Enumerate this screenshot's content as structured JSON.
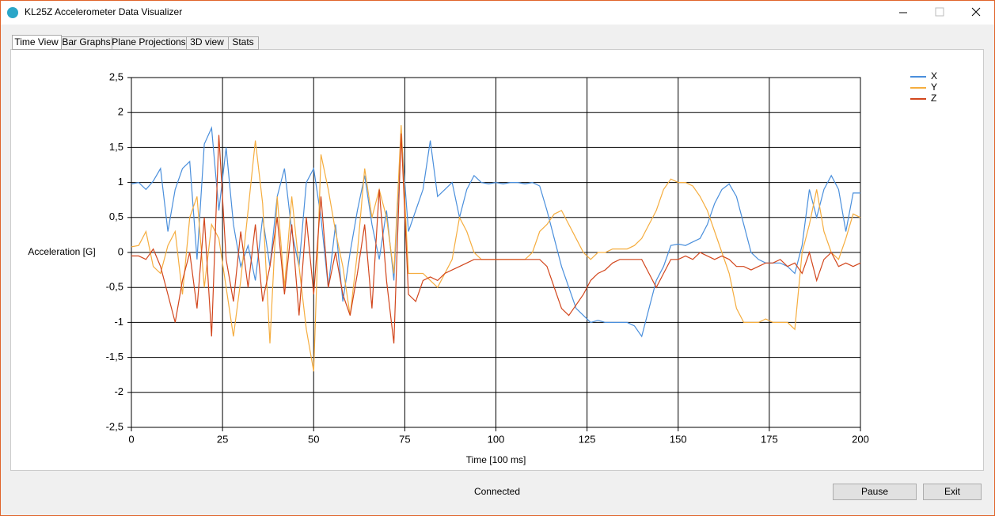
{
  "window": {
    "title": "KL25Z Accelerometer Data Visualizer",
    "tabs": [
      "Time View",
      "Bar Graphs",
      "Plane Projections",
      "3D view",
      "Stats"
    ],
    "status": "Connected",
    "buttons": [
      "Pause",
      "Exit"
    ]
  },
  "chart_data": {
    "type": "line",
    "ylabel": "Acceleration [G]",
    "xlabel": "Time [100 ms]",
    "xlim": [
      0,
      200
    ],
    "xticks": [
      0,
      25,
      50,
      75,
      100,
      125,
      150,
      175,
      200
    ],
    "ylim": [
      -2.5,
      2.5
    ],
    "yticks": [
      {
        "value": 2.5,
        "label": "2,5"
      },
      2,
      {
        "value": 1.5,
        "label": "1,5"
      },
      1,
      {
        "value": 0.5,
        "label": "0,5"
      },
      0,
      {
        "value": -0.5,
        "label": "-0,5"
      },
      -1,
      {
        "value": -1.5,
        "label": "-1,5"
      },
      -2,
      {
        "value": -2.5,
        "label": "-2,5"
      }
    ],
    "grid": true,
    "legend": "top-right",
    "x": [
      0,
      2,
      4,
      6,
      8,
      10,
      12,
      14,
      16,
      18,
      20,
      22,
      24,
      26,
      28,
      30,
      32,
      34,
      36,
      38,
      40,
      42,
      44,
      46,
      48,
      50,
      52,
      54,
      56,
      58,
      60,
      62,
      64,
      66,
      68,
      70,
      72,
      74,
      76,
      78,
      80,
      82,
      84,
      86,
      88,
      90,
      92,
      94,
      96,
      98,
      100,
      102,
      104,
      106,
      108,
      110,
      112,
      114,
      116,
      118,
      120,
      122,
      124,
      126,
      128,
      130,
      132,
      134,
      136,
      138,
      140,
      142,
      144,
      146,
      148,
      150,
      152,
      154,
      156,
      158,
      160,
      162,
      164,
      166,
      168,
      170,
      172,
      174,
      176,
      178,
      180,
      182,
      184,
      186,
      188,
      190,
      192,
      194,
      196,
      198,
      200
    ],
    "series": [
      {
        "name": "X",
        "color": "#4a8fdc",
        "values": [
          0.98,
          1.0,
          0.9,
          1.02,
          1.2,
          0.3,
          0.9,
          1.2,
          1.3,
          -0.1,
          1.55,
          1.78,
          0.6,
          1.5,
          0.4,
          -0.2,
          0.1,
          -0.4,
          0.5,
          -0.2,
          0.8,
          1.2,
          0.3,
          -0.2,
          1.0,
          1.2,
          0.5,
          -0.5,
          0.4,
          -0.7,
          0.0,
          0.6,
          1.1,
          0.4,
          -0.1,
          0.6,
          -0.4,
          1.7,
          0.3,
          0.6,
          0.9,
          1.6,
          0.8,
          0.9,
          1.0,
          0.5,
          0.9,
          1.1,
          1.0,
          0.98,
          1.0,
          0.98,
          1.0,
          1.0,
          0.98,
          1.0,
          0.95,
          0.6,
          0.2,
          -0.2,
          -0.5,
          -0.8,
          -0.9,
          -1.0,
          -0.97,
          -1.0,
          -1.0,
          -1.0,
          -1.0,
          -1.05,
          -1.2,
          -0.8,
          -0.4,
          -0.2,
          0.1,
          0.12,
          0.1,
          0.15,
          0.2,
          0.4,
          0.7,
          0.9,
          0.98,
          0.8,
          0.4,
          0.0,
          -0.1,
          -0.15,
          -0.15,
          -0.15,
          -0.2,
          -0.3,
          0.1,
          0.9,
          0.5,
          0.9,
          1.1,
          0.9,
          0.3,
          0.85,
          0.85
        ]
      },
      {
        "name": "Y",
        "color": "#f5ad3f",
        "values": [
          0.08,
          0.1,
          0.3,
          -0.2,
          -0.3,
          0.1,
          0.3,
          -0.6,
          0.5,
          0.8,
          -0.5,
          0.4,
          0.2,
          -0.5,
          -1.2,
          -0.4,
          0.6,
          1.6,
          0.7,
          -1.3,
          0.8,
          -0.5,
          0.8,
          -0.2,
          -1.1,
          -1.7,
          1.4,
          0.9,
          0.3,
          -0.2,
          -0.9,
          0.0,
          1.2,
          0.5,
          0.9,
          0.5,
          -0.3,
          1.82,
          -0.3,
          -0.3,
          -0.3,
          -0.4,
          -0.5,
          -0.3,
          -0.1,
          0.5,
          0.3,
          0.0,
          -0.1,
          -0.1,
          -0.1,
          -0.1,
          -0.1,
          -0.1,
          -0.1,
          0.0,
          0.3,
          0.4,
          0.55,
          0.6,
          0.4,
          0.2,
          0.0,
          -0.1,
          0.0,
          0.0,
          0.05,
          0.05,
          0.05,
          0.1,
          0.2,
          0.4,
          0.6,
          0.9,
          1.05,
          1.0,
          1.0,
          0.95,
          0.8,
          0.6,
          0.3,
          0.0,
          -0.3,
          -0.8,
          -1.0,
          -1.0,
          -1.0,
          -0.95,
          -1.0,
          -1.0,
          -1.0,
          -1.1,
          0.0,
          0.4,
          0.9,
          0.3,
          0.0,
          -0.1,
          0.2,
          0.55,
          0.5
        ]
      },
      {
        "name": "Z",
        "color": "#d2461c",
        "values": [
          -0.05,
          -0.05,
          -0.1,
          0.05,
          -0.2,
          -0.6,
          -1.0,
          -0.4,
          0.0,
          -0.8,
          0.5,
          -1.2,
          1.68,
          -0.1,
          -0.7,
          0.3,
          -0.5,
          0.4,
          -0.7,
          -0.2,
          0.5,
          -0.6,
          0.4,
          -0.9,
          0.5,
          -0.6,
          0.8,
          -0.5,
          0.0,
          -0.6,
          -0.9,
          -0.3,
          0.4,
          -0.8,
          0.9,
          -0.4,
          -1.3,
          1.7,
          -0.6,
          -0.7,
          -0.4,
          -0.35,
          -0.4,
          -0.3,
          -0.25,
          -0.2,
          -0.15,
          -0.1,
          -0.1,
          -0.1,
          -0.1,
          -0.1,
          -0.1,
          -0.1,
          -0.1,
          -0.1,
          -0.1,
          -0.2,
          -0.5,
          -0.8,
          -0.9,
          -0.75,
          -0.6,
          -0.4,
          -0.3,
          -0.25,
          -0.15,
          -0.1,
          -0.1,
          -0.1,
          -0.1,
          -0.3,
          -0.5,
          -0.3,
          -0.1,
          -0.1,
          -0.05,
          -0.1,
          0.0,
          -0.05,
          -0.1,
          -0.05,
          -0.1,
          -0.2,
          -0.2,
          -0.25,
          -0.2,
          -0.15,
          -0.15,
          -0.1,
          -0.2,
          -0.15,
          -0.3,
          0.0,
          -0.4,
          -0.1,
          0.0,
          -0.2,
          -0.15,
          -0.2,
          -0.15
        ]
      }
    ]
  }
}
